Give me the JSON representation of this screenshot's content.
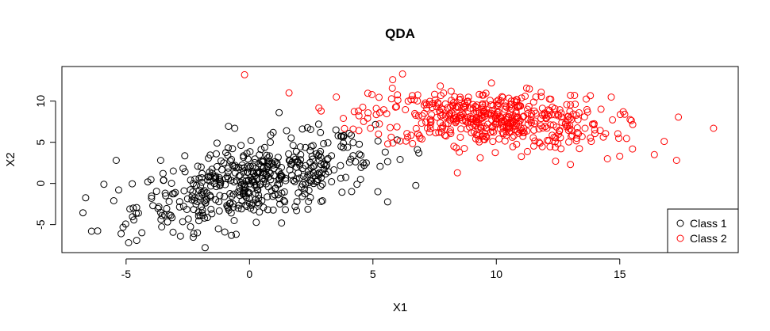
{
  "chart_data": {
    "type": "scatter",
    "title": "QDA",
    "xlabel": "X1",
    "ylabel": "X2",
    "xlim": [
      -7.6,
      19.8
    ],
    "ylim": [
      -8.4,
      14.2
    ],
    "xticks": [
      -5,
      0,
      5,
      10,
      15
    ],
    "yticks": [
      -5,
      0,
      5,
      10
    ],
    "grid": false,
    "legend_position": "bottom-right",
    "point_style": "open-circle",
    "series": [
      {
        "name": "Class 1",
        "color": "#000000",
        "center": [
          0.2,
          0.2
        ],
        "spread": [
          2.4,
          2.7
        ],
        "correlation": 0.55,
        "count": 500,
        "points": [
          [
            -6.4,
            -5.8
          ],
          [
            -5.9,
            -0.1
          ],
          [
            -5.4,
            2.8
          ],
          [
            -5.2,
            -6.1
          ],
          [
            -4.9,
            -7.2
          ],
          [
            -5.5,
            -2.1
          ],
          [
            -4.5,
            -3.6
          ],
          [
            -3.6,
            2.8
          ],
          [
            -1.8,
            -7.8
          ],
          [
            -0.6,
            6.7
          ],
          [
            1.2,
            8.6
          ],
          [
            1.5,
            6.4
          ],
          [
            2.8,
            7.2
          ],
          [
            3.5,
            6.5
          ],
          [
            3.8,
            4.9
          ],
          [
            4.6,
            2.5
          ],
          [
            5.2,
            -1.0
          ],
          [
            5.5,
            3.8
          ],
          [
            6.1,
            2.9
          ],
          [
            6.8,
            4.1
          ],
          [
            -2.8,
            -6.4
          ],
          [
            -1.0,
            -5.9
          ],
          [
            1.3,
            -4.8
          ],
          [
            2.9,
            -2.2
          ],
          [
            4.5,
            0.5
          ]
        ]
      },
      {
        "name": "Class 2",
        "color": "#ff0000",
        "center": [
          9.8,
          7.8
        ],
        "spread": [
          2.4,
          1.7
        ],
        "correlation": -0.2,
        "count": 500,
        "points": [
          [
            -0.2,
            13.2
          ],
          [
            1.6,
            11.0
          ],
          [
            2.9,
            8.8
          ],
          [
            3.8,
            7.9
          ],
          [
            4.2,
            6.6
          ],
          [
            4.9,
            6.7
          ],
          [
            5.6,
            4.8
          ],
          [
            5.8,
            12.6
          ],
          [
            6.2,
            13.3
          ],
          [
            7.0,
            8.2
          ],
          [
            9.8,
            12.2
          ],
          [
            12.4,
            2.7
          ],
          [
            13.0,
            2.3
          ],
          [
            14.5,
            3.0
          ],
          [
            15.0,
            3.3
          ],
          [
            16.4,
            3.5
          ],
          [
            16.8,
            5.1
          ],
          [
            17.3,
            2.8
          ],
          [
            18.8,
            6.7
          ],
          [
            13.0,
            10.7
          ],
          [
            11.6,
            10.5
          ],
          [
            8.5,
            3.8
          ],
          [
            15.2,
            8.4
          ]
        ]
      }
    ]
  }
}
